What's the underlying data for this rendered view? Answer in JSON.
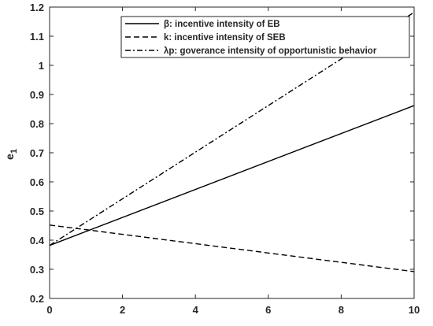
{
  "chart_data": {
    "type": "line",
    "title": "",
    "xlabel": "",
    "ylabel": "e",
    "ylabel_subscript": "1",
    "xlim": [
      0,
      10
    ],
    "ylim": [
      0.2,
      1.2
    ],
    "xticks": [
      "0",
      "2",
      "4",
      "6",
      "8",
      "10"
    ],
    "yticks": [
      "0.2",
      "0.3",
      "0.4",
      "0.5",
      "0.6",
      "0.7",
      "0.8",
      "0.9",
      "1",
      "1.1",
      "1.2"
    ],
    "grid": false,
    "legend_position": "top-right",
    "series": [
      {
        "name": "β: incentive intensity of EB",
        "style": "solid",
        "x": [
          0,
          10
        ],
        "y": [
          0.382,
          0.862
        ]
      },
      {
        "name": "k: incentive intensity of SEB",
        "style": "dashed",
        "x": [
          0,
          10
        ],
        "y": [
          0.452,
          0.292
        ]
      },
      {
        "name": "λp: goverance intensity of opportunistic behavior",
        "style": "dashdot",
        "x": [
          0,
          10
        ],
        "y": [
          0.382,
          1.182
        ]
      }
    ]
  }
}
